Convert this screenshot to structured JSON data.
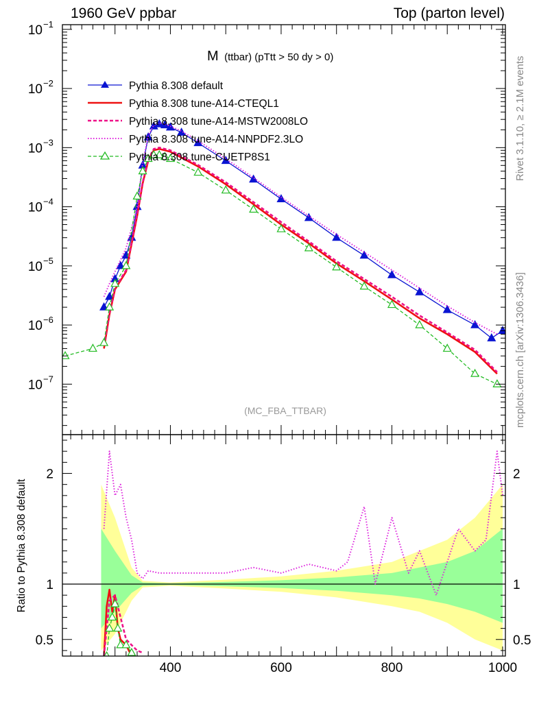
{
  "header": {
    "left": "1960 GeV ppbar",
    "right": "Top (parton level)"
  },
  "side_labels": {
    "top": "Rivet 3.1.10, ≥ 2.1M events",
    "bottom": "mcplots.cern.ch [arXiv:1306.3436]"
  },
  "analysis_label": "(MC_FBA_TTBAR)",
  "colors": {
    "default": "#0a14d2",
    "cteql1": "#ee1111",
    "mstw": "#ee1188",
    "nnpdf": "#dd22dd",
    "cuetp8s1": "#22bb22",
    "band_yellow": "#ffff99",
    "band_green": "#99ff99"
  },
  "chart_data": [
    {
      "type": "line",
      "title_main": "M",
      "title_sub": "(ttbar) (pTtt > 50 dy > 0)",
      "y_scale": "log",
      "xlim": [
        205,
        1005
      ],
      "ylim": [
        1.4e-08,
        0.12
      ],
      "y_ticks": [
        {
          "value": 1e-07,
          "base": "10",
          "exp": "−7"
        },
        {
          "value": 1e-06,
          "base": "10",
          "exp": "−6"
        },
        {
          "value": 1e-05,
          "base": "10",
          "exp": "−5"
        },
        {
          "value": 0.0001,
          "base": "10",
          "exp": "−4"
        },
        {
          "value": 0.001,
          "base": "10",
          "exp": "−3"
        },
        {
          "value": 0.01,
          "base": "10",
          "exp": "−2"
        },
        {
          "value": 0.1,
          "base": "10",
          "exp": "−1"
        }
      ],
      "legend_position": "top-left",
      "series": [
        {
          "name": "Pythia 8.308 default",
          "key": "default",
          "style": "solid-triangle",
          "x": [
            280,
            290,
            300,
            310,
            320,
            330,
            340,
            350,
            360,
            370,
            380,
            390,
            400,
            420,
            450,
            500,
            550,
            600,
            650,
            700,
            750,
            800,
            850,
            900,
            950,
            980,
            1000
          ],
          "y": [
            2e-06,
            3e-06,
            6e-06,
            1e-05,
            1.5e-05,
            3e-05,
            0.0001,
            0.0005,
            0.0015,
            0.0023,
            0.0025,
            0.0024,
            0.0022,
            0.0018,
            0.0012,
            0.0006,
            0.00029,
            0.000135,
            6.5e-05,
            3e-05,
            1.5e-05,
            7e-06,
            3.6e-06,
            1.8e-06,
            1e-06,
            6e-07,
            8e-07
          ]
        },
        {
          "name": "Pythia 8.308 tune-A14-CTEQL1",
          "key": "cteql1",
          "style": "solid",
          "x": [
            280,
            290,
            300,
            320,
            340,
            350,
            360,
            370,
            380,
            390,
            400,
            450,
            500,
            550,
            600,
            650,
            700,
            750,
            800,
            850,
            900,
            950,
            990
          ],
          "y": [
            4e-07,
            1.5e-06,
            4e-06,
            8e-06,
            7e-05,
            0.00025,
            0.0006,
            0.0009,
            0.00095,
            0.0009,
            0.00085,
            0.00048,
            0.00024,
            0.00011,
            5e-05,
            2.4e-05,
            1.1e-05,
            5.5e-06,
            2.7e-06,
            1.3e-06,
            7e-07,
            3.5e-07,
            1.5e-07
          ]
        },
        {
          "name": "Pythia 8.308 tune-A14-MSTW2008LO",
          "key": "mstw",
          "style": "dashed",
          "x": [
            280,
            290,
            300,
            320,
            340,
            350,
            360,
            370,
            380,
            390,
            400,
            450,
            500,
            550,
            600,
            650,
            700,
            750,
            800,
            850,
            900,
            950,
            990
          ],
          "y": [
            4.5e-07,
            1.6e-06,
            4.2e-06,
            8.5e-06,
            7.5e-05,
            0.00026,
            0.00063,
            0.00095,
            0.001,
            0.00095,
            0.0009,
            0.00051,
            0.00026,
            0.00012,
            5.5e-05,
            2.6e-05,
            1.2e-05,
            6e-06,
            3e-06,
            1.45e-06,
            7.5e-07,
            3.8e-07,
            1.6e-07
          ]
        },
        {
          "name": "Pythia 8.308 tune-A14-NNPDF2.3LO",
          "key": "nnpdf",
          "style": "dotted",
          "x": [
            280,
            290,
            300,
            320,
            340,
            350,
            360,
            370,
            380,
            390,
            400,
            420,
            450,
            500,
            550,
            600,
            650,
            700,
            750,
            800,
            850,
            900,
            950,
            990
          ],
          "y": [
            3e-06,
            5e-06,
            8e-06,
            2e-05,
            0.0001,
            0.00055,
            0.0016,
            0.0024,
            0.0026,
            0.0025,
            0.0023,
            0.0019,
            0.0013,
            0.00065,
            0.00031,
            0.000145,
            7e-05,
            3.4e-05,
            1.7e-05,
            8.5e-06,
            4.2e-06,
            2.1e-06,
            1.1e-06,
            7e-07
          ]
        },
        {
          "name": "Pythia 8.308 tune-CUETP8S1",
          "key": "cuetp8s1",
          "style": "dashed-open-triangle",
          "x": [
            210,
            260,
            280,
            290,
            300,
            320,
            340,
            350,
            360,
            370,
            380,
            390,
            400,
            450,
            500,
            550,
            600,
            650,
            700,
            750,
            800,
            850,
            900,
            950,
            990
          ],
          "y": [
            3e-07,
            4e-07,
            5e-07,
            2e-06,
            5e-06,
            1e-05,
            0.00015,
            0.0004,
            0.00065,
            0.00075,
            0.00075,
            0.0007,
            0.00065,
            0.00038,
            0.00019,
            9e-05,
            4.2e-05,
            2e-05,
            9.5e-06,
            4.5e-06,
            2.2e-06,
            1e-06,
            4e-07,
            1.5e-07,
            1e-07
          ]
        }
      ]
    },
    {
      "type": "line",
      "ylabel": "Ratio to Pythia 8.308 default",
      "xlim": [
        205,
        1005
      ],
      "ylim": [
        0.35,
        2.35
      ],
      "x_ticks": [
        400,
        600,
        800,
        1000
      ],
      "y_ticks": [
        0.5,
        1,
        2
      ],
      "reference_line": 1,
      "band_yellow": {
        "x": [
          275,
          300,
          330,
          350,
          400,
          500,
          600,
          700,
          800,
          850,
          900,
          950,
          1000
        ],
        "lo": [
          0.4,
          0.55,
          0.85,
          0.97,
          0.985,
          0.96,
          0.93,
          0.88,
          0.8,
          0.75,
          0.65,
          0.5,
          0.4
        ],
        "hi": [
          1.9,
          1.6,
          1.15,
          1.03,
          1.015,
          1.04,
          1.07,
          1.12,
          1.2,
          1.3,
          1.4,
          1.6,
          1.9
        ]
      },
      "band_green": {
        "x": [
          275,
          300,
          330,
          350,
          400,
          500,
          600,
          700,
          800,
          850,
          900,
          950,
          1000
        ],
        "lo": [
          0.6,
          0.75,
          0.92,
          0.985,
          0.993,
          0.98,
          0.965,
          0.94,
          0.9,
          0.87,
          0.82,
          0.75,
          0.65
        ],
        "hi": [
          1.5,
          1.3,
          1.08,
          1.015,
          1.007,
          1.02,
          1.035,
          1.06,
          1.1,
          1.15,
          1.2,
          1.3,
          1.5
        ]
      },
      "series": [
        {
          "key": "nnpdf",
          "style": "dotted",
          "x": [
            280,
            290,
            300,
            310,
            320,
            330,
            340,
            350,
            360,
            380,
            400,
            450,
            500,
            550,
            600,
            650,
            700,
            720,
            750,
            770,
            800,
            830,
            850,
            880,
            900,
            920,
            950,
            970,
            990,
            1000
          ],
          "y": [
            1.5,
            2.2,
            1.8,
            1.9,
            1.6,
            1.4,
            1.1,
            1.05,
            1.12,
            1.1,
            1.1,
            1.1,
            1.1,
            1.15,
            1.1,
            1.18,
            1.12,
            1.2,
            1.7,
            1.0,
            1.6,
            1.1,
            1.3,
            0.9,
            1.2,
            1.5,
            1.3,
            1.4,
            2.2,
            1.8
          ]
        },
        {
          "key": "cteql1",
          "style": "solid",
          "x": [
            280,
            285,
            290,
            295,
            300,
            305,
            310,
            320,
            330
          ],
          "y": [
            0.35,
            0.8,
            0.95,
            0.75,
            0.9,
            0.6,
            0.5,
            0.45,
            0.35
          ]
        },
        {
          "key": "mstw",
          "style": "dashed",
          "x": [
            280,
            290,
            300,
            310,
            320,
            330,
            340,
            350
          ],
          "y": [
            0.35,
            0.85,
            0.9,
            0.7,
            0.5,
            0.45,
            0.4,
            0.38
          ]
        },
        {
          "key": "cuetp8s1",
          "style": "dashed-open-triangle",
          "x": [
            285,
            290,
            295,
            300,
            305,
            310,
            320,
            330
          ],
          "y": [
            0.35,
            0.6,
            0.7,
            0.82,
            0.6,
            0.45,
            0.45,
            0.38
          ]
        }
      ]
    }
  ]
}
